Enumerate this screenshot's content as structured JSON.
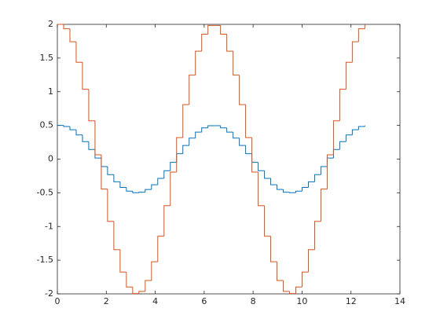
{
  "chart_data": {
    "type": "stairs",
    "x": [
      0,
      0.2565,
      0.5129,
      0.7694,
      1.0258,
      1.2823,
      1.5387,
      1.7952,
      2.0517,
      2.3081,
      2.5646,
      2.821,
      3.0775,
      3.3339,
      3.5904,
      3.8469,
      4.1033,
      4.3598,
      4.6162,
      4.8727,
      5.1291,
      5.3856,
      5.6421,
      5.8985,
      6.155,
      6.4114,
      6.6679,
      6.9243,
      7.1808,
      7.4373,
      7.6937,
      7.9502,
      8.2066,
      8.4631,
      8.7195,
      8.976,
      9.2325,
      9.4889,
      9.7454,
      10.0018,
      10.2583,
      10.5147,
      10.7712,
      11.0277,
      11.2841,
      11.5406,
      11.797,
      12.0535,
      12.3099,
      12.5664
    ],
    "series": [
      {
        "color": "#0072BD",
        "values": [
          0.5,
          0.4836,
          0.4357,
          0.3592,
          0.2592,
          0.1423,
          0.016,
          -0.1113,
          -0.2309,
          -0.3362,
          -0.4191,
          -0.4745,
          -0.499,
          -0.4908,
          -0.4505,
          -0.3807,
          -0.2861,
          -0.1727,
          -0.048,
          0.0798,
          0.2024,
          0.3117,
          0.4007,
          0.4635,
          0.4959,
          0.4959,
          0.4635,
          0.4007,
          0.3117,
          0.2024,
          0.0798,
          -0.048,
          -0.1727,
          -0.2861,
          -0.3807,
          -0.4505,
          -0.4908,
          -0.499,
          -0.4745,
          -0.4191,
          -0.3362,
          -0.2309,
          -0.1113,
          0.016,
          0.1423,
          0.2592,
          0.3592,
          0.4357,
          0.4836,
          0.5
        ]
      },
      {
        "color": "#D95319",
        "values": [
          2,
          1.9346,
          1.7426,
          1.4366,
          1.0368,
          0.569,
          0.0641,
          -0.445,
          -0.9237,
          -1.3446,
          -1.6762,
          -1.8981,
          -1.9959,
          -1.9631,
          -1.8019,
          -1.5228,
          -1.1442,
          -0.6907,
          -0.1921,
          0.3192,
          0.8096,
          1.247,
          1.6027,
          1.8538,
          1.9836,
          1.9836,
          1.8538,
          1.6027,
          1.247,
          0.8096,
          0.3192,
          -0.1921,
          -0.6907,
          -1.1442,
          -1.5228,
          -1.8019,
          -1.9631,
          -1.9959,
          -1.8981,
          -1.6762,
          -1.3446,
          -0.9237,
          -0.445,
          0.0641,
          0.569,
          1.0368,
          1.4366,
          1.7426,
          1.9346,
          2
        ]
      }
    ],
    "xlim": [
      0,
      14
    ],
    "xticks": [
      0,
      2,
      4,
      6,
      8,
      10,
      12,
      14
    ],
    "ylim": [
      -2,
      2
    ],
    "yticks": [
      -2,
      -1.5,
      -1,
      -0.5,
      0,
      0.5,
      1,
      1.5,
      2
    ],
    "grid": false
  }
}
